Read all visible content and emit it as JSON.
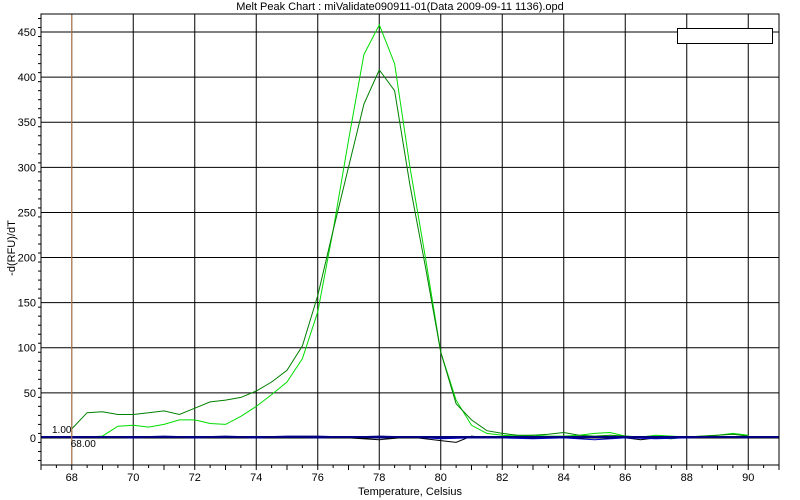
{
  "chart_data": {
    "type": "line",
    "title": "Melt Peak Chart : miValidate090911-01(Data 2009-09-11 1136).opd",
    "xlabel": "Temperature, Celsius",
    "ylabel": "-d(RFU)/dT",
    "xlim": [
      67,
      91
    ],
    "ylim": [
      -30,
      470
    ],
    "xticks": [
      68,
      70,
      72,
      74,
      76,
      78,
      80,
      82,
      84,
      86,
      88,
      90
    ],
    "yticks": [
      0,
      50,
      100,
      150,
      200,
      250,
      300,
      350,
      400,
      450
    ],
    "grid": true,
    "legend_position": "top-right",
    "threshold": {
      "value": 1.0,
      "label": "1.00",
      "color": "#000080"
    },
    "cursor": {
      "x": 68.0,
      "label": "68.00",
      "color": "#c8895a"
    },
    "series": [
      {
        "color": "#00dd00",
        "x": [
          68,
          68.5,
          69,
          69.5,
          70,
          70.5,
          71,
          71.5,
          72,
          72.5,
          73,
          73.5,
          74,
          74.5,
          75,
          75.5,
          76,
          76.5,
          77,
          77.5,
          78,
          78.5,
          79,
          79.5,
          80,
          80.5,
          81,
          81.5,
          82,
          82.5,
          83,
          83.5,
          84,
          84.5,
          85,
          85.5,
          86,
          86.5,
          87,
          87.5,
          88,
          88.5,
          89,
          89.5,
          90
        ],
        "y": [
          0,
          1,
          2,
          13,
          14,
          12,
          15,
          20,
          20,
          16,
          15,
          24,
          35,
          48,
          62,
          88,
          140,
          230,
          330,
          425,
          458,
          415,
          300,
          200,
          95,
          42,
          14,
          5,
          3,
          2,
          3,
          2,
          2,
          3,
          5,
          6,
          2,
          1,
          3,
          2,
          1,
          2,
          3,
          5,
          3
        ]
      },
      {
        "color": "#008000",
        "x": [
          68,
          68.5,
          69,
          69.5,
          70,
          70.5,
          71,
          71.5,
          72,
          72.5,
          73,
          73.5,
          74,
          74.5,
          75,
          75.5,
          76,
          76.5,
          77,
          77.5,
          78,
          78.5,
          79,
          79.5,
          80,
          80.5,
          81,
          81.5,
          82,
          82.5,
          83,
          83.5,
          84,
          84.5,
          85,
          85.5,
          86,
          86.5,
          87,
          87.5,
          88,
          88.5,
          89,
          89.5,
          90
        ],
        "y": [
          10,
          28,
          29,
          26,
          26,
          28,
          30,
          26,
          33,
          40,
          42,
          45,
          52,
          62,
          75,
          102,
          158,
          230,
          300,
          370,
          408,
          385,
          280,
          190,
          95,
          38,
          20,
          8,
          5,
          3,
          3,
          4,
          6,
          3,
          2,
          3,
          2,
          1,
          0,
          -1,
          1,
          2,
          3,
          4,
          2
        ]
      },
      {
        "color": "#000000",
        "x": [
          68,
          69,
          70,
          71,
          72,
          73,
          74,
          75,
          76,
          77,
          78,
          79,
          80,
          80.5,
          81,
          81.5,
          82,
          83,
          84,
          85,
          86,
          86.5,
          87,
          88,
          89,
          90
        ],
        "y": [
          0,
          0,
          0,
          0,
          0,
          1,
          0,
          1,
          0,
          0,
          -2,
          1,
          -3,
          -5,
          2,
          0,
          1,
          0,
          1,
          0,
          0,
          -2,
          0,
          0,
          0,
          0
        ]
      },
      {
        "color": "#000080",
        "x": [
          68,
          69,
          70,
          71,
          72,
          73,
          74,
          75,
          76,
          77,
          78,
          79,
          80,
          81,
          82,
          83,
          84,
          85,
          86,
          87,
          88,
          89,
          90
        ],
        "y": [
          1,
          1,
          1,
          2,
          1,
          2,
          1,
          2,
          2,
          1,
          2,
          1,
          1,
          1,
          1,
          1,
          0,
          1,
          1,
          1,
          1,
          1,
          1
        ]
      },
      {
        "color": "#0000c0",
        "x": [
          68,
          69,
          70,
          71,
          72,
          73,
          74,
          75,
          76,
          77,
          78,
          79,
          80,
          81,
          82,
          83,
          84,
          85,
          86,
          87,
          88,
          89,
          90
        ],
        "y": [
          0,
          1,
          0,
          1,
          0,
          1,
          0,
          1,
          0,
          1,
          0,
          1,
          -1,
          0,
          0,
          -1,
          0,
          -2,
          0,
          -1,
          0,
          1,
          0
        ]
      }
    ]
  }
}
